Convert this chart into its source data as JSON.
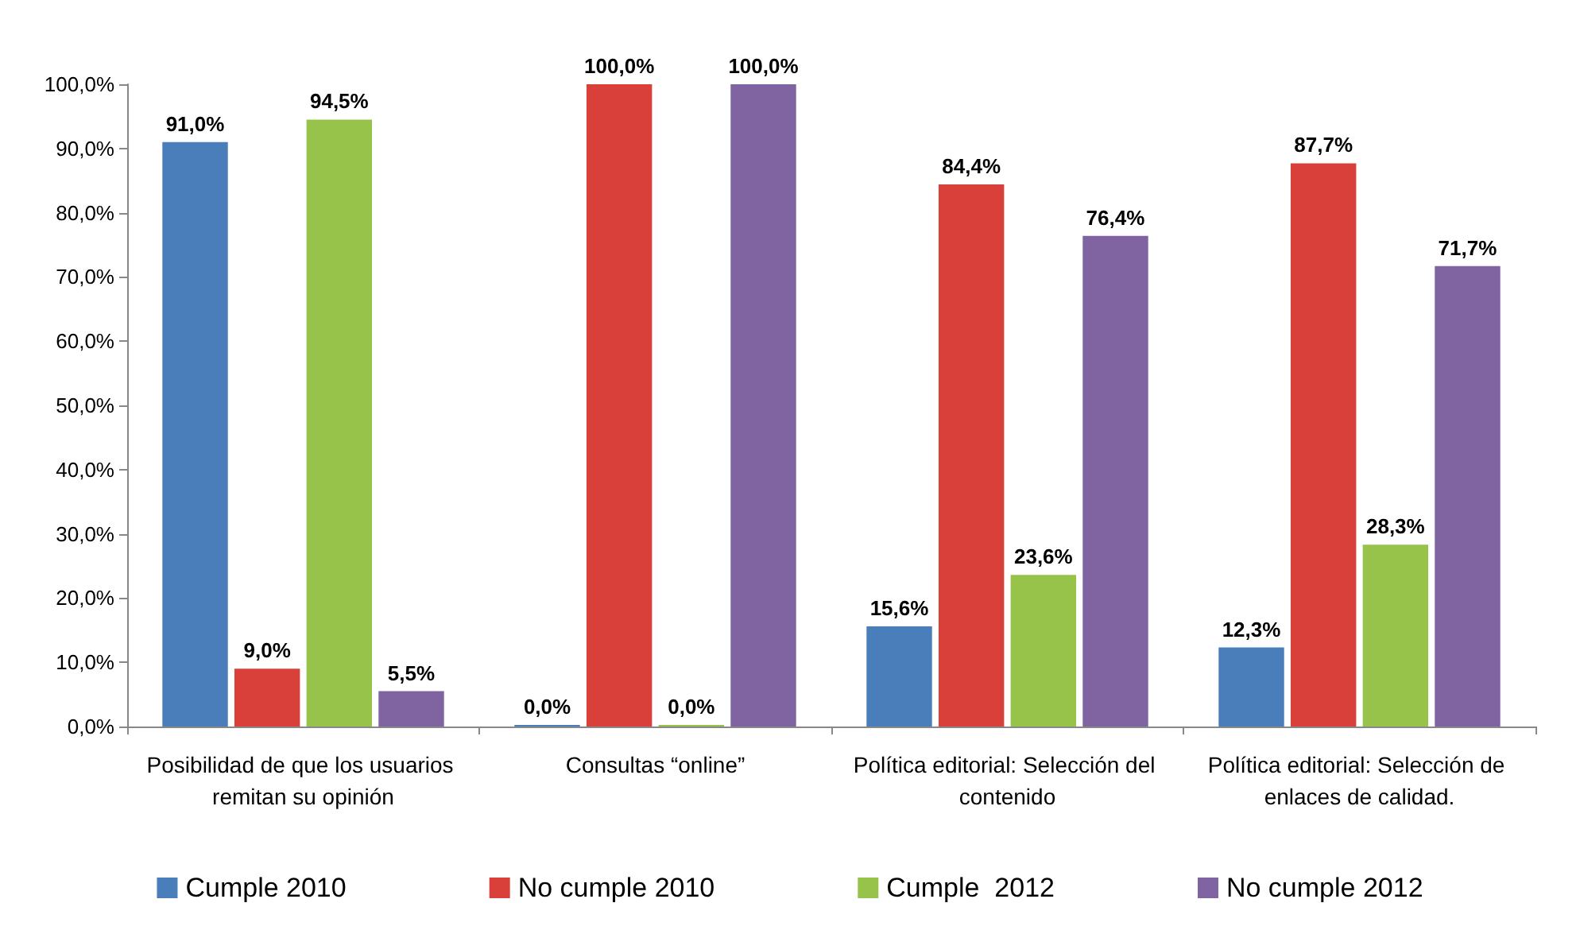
{
  "chart_data": {
    "type": "bar",
    "categories": [
      "Posibilidad de que los usuarios remitan su opinión",
      "Consultas “online”",
      "Política editorial: Selección del contenido",
      "Política editorial: Selección de enlaces de calidad."
    ],
    "series": [
      {
        "name": "Cumple 2010",
        "color": "#4a7ebb",
        "values": [
          91.0,
          0.0,
          15.6,
          12.3
        ],
        "value_labels": [
          "91,0%",
          "0,0%",
          "15,6%",
          "12,3%"
        ]
      },
      {
        "name": "No cumple 2010",
        "color": "#d9403a",
        "values": [
          9.0,
          100.0,
          84.4,
          87.7
        ],
        "value_labels": [
          "9,0%",
          "100,0%",
          "84,4%",
          "87,7%"
        ]
      },
      {
        "name": "Cumple  2012",
        "color": "#98c34a",
        "values": [
          94.5,
          0.0,
          23.6,
          28.3
        ],
        "value_labels": [
          "94,5%",
          "0,0%",
          "23,6%",
          "28,3%"
        ]
      },
      {
        "name": "No cumple 2012",
        "color": "#8064a2",
        "values": [
          5.5,
          100.0,
          76.4,
          71.7
        ],
        "value_labels": [
          "5,5%",
          "100,0%",
          "76,4%",
          "71,7%"
        ]
      }
    ],
    "ylim": [
      0,
      100
    ],
    "yticks": [
      {
        "value": 0,
        "label": "0,0%"
      },
      {
        "value": 10,
        "label": "10,0%"
      },
      {
        "value": 20,
        "label": "20,0%"
      },
      {
        "value": 30,
        "label": "30,0%"
      },
      {
        "value": 40,
        "label": "40,0%"
      },
      {
        "value": 50,
        "label": "50,0%"
      },
      {
        "value": 60,
        "label": "60,0%"
      },
      {
        "value": 70,
        "label": "70,0%"
      },
      {
        "value": 80,
        "label": "80,0%"
      },
      {
        "value": 90,
        "label": "90,0%"
      },
      {
        "value": 100,
        "label": "100,0%"
      }
    ],
    "grid": false,
    "legend": "bottom"
  }
}
